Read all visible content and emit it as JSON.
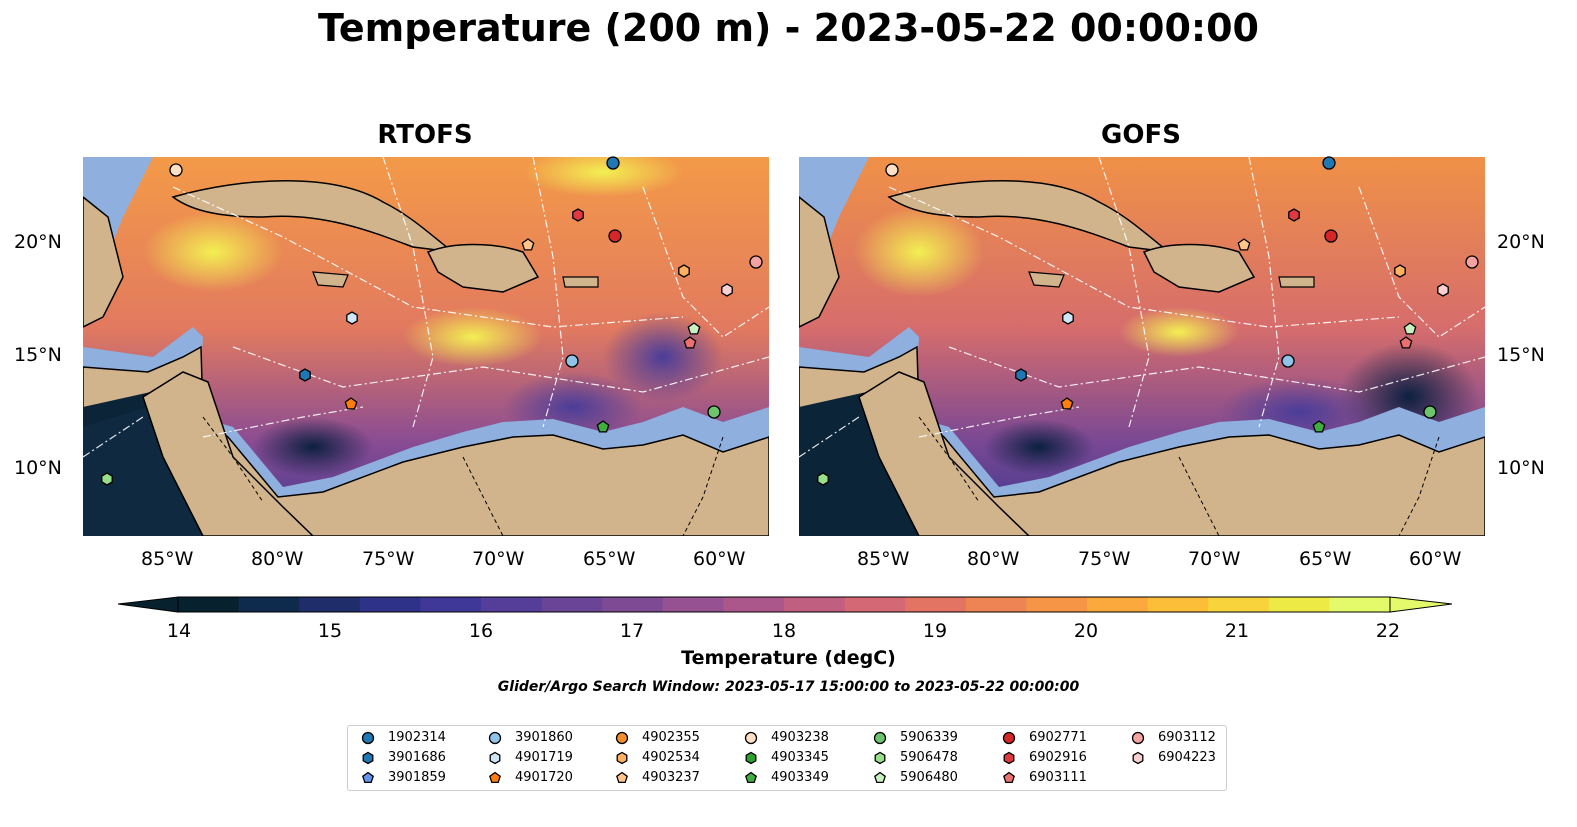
{
  "title": "Temperature (200 m) - 2023-05-22 00:00:00",
  "panels": [
    {
      "title": "RTOFS"
    },
    {
      "title": "GOFS"
    }
  ],
  "lat_labels": [
    "20°N",
    "15°N",
    "10°N"
  ],
  "lon_labels": [
    "85°W",
    "80°W",
    "75°W",
    "70°W",
    "65°W",
    "60°W"
  ],
  "colorbar": {
    "label": "Temperature (degC)",
    "ticks": [
      "14",
      "15",
      "16",
      "17",
      "18",
      "19",
      "20",
      "21",
      "22"
    ],
    "range": [
      14,
      22
    ],
    "colormap": "thermal",
    "colors": [
      "#08212f",
      "#0e2a4d",
      "#1f2e6b",
      "#2f3289",
      "#3f3898",
      "#553e9a",
      "#6a4497",
      "#7f4a94",
      "#955191",
      "#ab578c",
      "#c15f81",
      "#d46874",
      "#e37464",
      "#ee8354",
      "#f69546",
      "#fba93c",
      "#fcbd39",
      "#f8d33c",
      "#eeea45",
      "#e5fa6a"
    ]
  },
  "search_window": "Glider/Argo Search Window: 2023-05-17 15:00:00 to 2023-05-22 00:00:00",
  "land_color": "#d2b48c",
  "shelf_color": "#8fb0de",
  "legend": [
    {
      "id": "1902314",
      "marker": "circle",
      "color": "#1f77b4"
    },
    {
      "id": "3901686",
      "marker": "hexagon",
      "color": "#1f77b4"
    },
    {
      "id": "3901859",
      "marker": "pentagon",
      "color": "#6495ed"
    },
    {
      "id": "3901860",
      "marker": "circle",
      "color": "#8fc3e8"
    },
    {
      "id": "4901719",
      "marker": "hexagon",
      "color": "#cfe6f7"
    },
    {
      "id": "4901720",
      "marker": "pentagon",
      "color": "#ff7f0e"
    },
    {
      "id": "4902355",
      "marker": "circle",
      "color": "#f28e2b"
    },
    {
      "id": "4902534",
      "marker": "hexagon",
      "color": "#ffb061"
    },
    {
      "id": "4903237",
      "marker": "pentagon",
      "color": "#ffc58a"
    },
    {
      "id": "4903238",
      "marker": "circle",
      "color": "#fde0c5"
    },
    {
      "id": "4903345",
      "marker": "hexagon",
      "color": "#2ca02c"
    },
    {
      "id": "4903349",
      "marker": "pentagon",
      "color": "#3fae3f"
    },
    {
      "id": "5906339",
      "marker": "circle",
      "color": "#6cc46c"
    },
    {
      "id": "5906478",
      "marker": "hexagon",
      "color": "#98df8a"
    },
    {
      "id": "5906480",
      "marker": "pentagon",
      "color": "#c8f0c0"
    },
    {
      "id": "6902771",
      "marker": "circle",
      "color": "#d62728"
    },
    {
      "id": "6902916",
      "marker": "hexagon",
      "color": "#e03a3e"
    },
    {
      "id": "6903111",
      "marker": "pentagon",
      "color": "#ec7070"
    },
    {
      "id": "6903112",
      "marker": "circle",
      "color": "#f4a3a3"
    },
    {
      "id": "6904223",
      "marker": "hexagon",
      "color": "#fbd0d0"
    }
  ]
}
